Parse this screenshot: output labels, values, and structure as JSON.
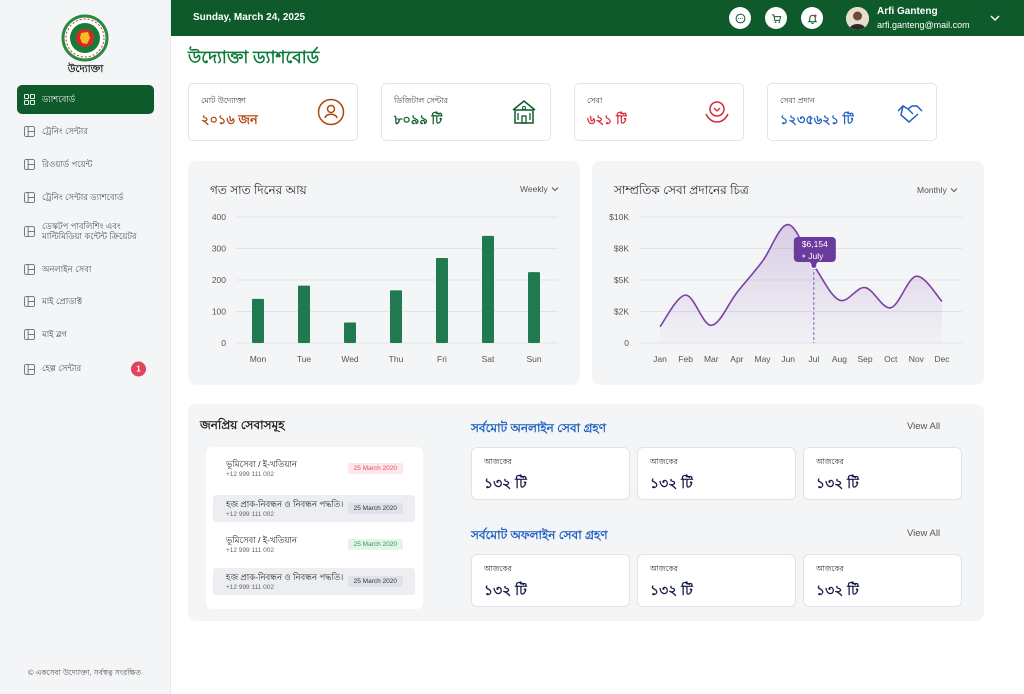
{
  "sidebar": {
    "brand": "উদ্যোক্তা",
    "items": [
      {
        "label": "ড্যাশবোর্ড",
        "active": true
      },
      {
        "label": "ট্রেনিং সেন্টার"
      },
      {
        "label": "রিওয়ার্ড পয়েন্ট"
      },
      {
        "label": "ট্রেনিং সেন্টার ড্যাশবোর্ড"
      },
      {
        "label": "ডেস্কটপ পাবলিশিং এবং মাল্টিমিডিয়া কন্টেন্ট ক্রিয়েটর"
      },
      {
        "label": "অনলাইন সেবা"
      },
      {
        "label": "মাই প্রোডাক্ট"
      },
      {
        "label": "মাই ব্লগ"
      },
      {
        "label": "হেল্প সেন্টার",
        "badge": "1"
      }
    ],
    "footer": "© একসেবা উদ্যোক্তা, সর্বস্বত্ব সংরক্ষিত"
  },
  "topbar": {
    "date": "Sunday, March 24, 2025",
    "icons": [
      "chat-icon",
      "cart-icon",
      "bell-icon"
    ],
    "user_name": "Arfi Ganteng",
    "user_email": "arfi.ganteng@mail.com"
  },
  "page_title": "উদ্যোক্তা ড্যাশবোর্ড",
  "stats": [
    {
      "label": "মোট উদ্যোক্তা",
      "value": "২০১৬ জন",
      "color": "#b0470a",
      "icon": "person-icon"
    },
    {
      "label": "ডিজিটাল সেন্টার",
      "value": "৮০৯৯ টি",
      "color": "#0e5a2b",
      "icon": "building-icon"
    },
    {
      "label": "সেবা",
      "value": "৬২১ টি",
      "color": "#d6283c",
      "icon": "hands-care-icon"
    },
    {
      "label": "সেবা প্রদান",
      "value": "১২৩৫৬২১ টি",
      "color": "#1d5fc2",
      "icon": "handshake-icon"
    }
  ],
  "revenue_chart": {
    "title": "গত সাত দিনের আয়",
    "period": "Weekly",
    "chart_data": {
      "type": "bar",
      "categories": [
        "Mon",
        "Tue",
        "Wed",
        "Thu",
        "Fri",
        "Sat",
        "Sun"
      ],
      "values": [
        140,
        182,
        65,
        167,
        270,
        340,
        225
      ],
      "ylim": [
        0,
        400
      ],
      "yticks": [
        "400",
        "300",
        "200",
        "100",
        "0"
      ],
      "color": "#1f7a4f"
    }
  },
  "service_chart": {
    "title": "সাম্প্রতিক সেবা প্রদানের চিত্র",
    "period": "Monthly",
    "tooltip_value": "$6,154",
    "tooltip_label": "July",
    "chart_data": {
      "type": "line",
      "categories": [
        "Jan",
        "Feb",
        "Mar",
        "Apr",
        "May",
        "Jun",
        "Jul",
        "Aug",
        "Sep",
        "Oct",
        "Nov",
        "Dec"
      ],
      "values": [
        1300,
        3800,
        1400,
        4000,
        6500,
        9400,
        6154,
        3400,
        4400,
        2800,
        5300,
        3300
      ],
      "ylim": [
        0,
        10000
      ],
      "yticks": [
        "$10K",
        "$8K",
        "$5K",
        "$2K",
        "0"
      ],
      "color": "#7b3fa5",
      "highlight_index": 6
    }
  },
  "popular": {
    "title": "জনপ্রিয় সেবাসমূহ",
    "items": [
      {
        "title": "ভূমিসেবা / ই-খতিয়ান",
        "phone": "+12 999 111 002",
        "date": "25 March 2020",
        "date_color": "#e05060",
        "date_bg": "#fde7ea"
      },
      {
        "title": "হজ প্রাক-নিবন্ধন ও নিবন্ধন পদ্ধতি।",
        "phone": "+12 999 111 002",
        "date": "25 March 2020",
        "date_color": "#333",
        "date_bg": "#dfe2ea"
      },
      {
        "title": "ভূমিসেবা / ই-খতিয়ান",
        "phone": "+12 999 111 002",
        "date": "25 March 2020",
        "date_color": "#2a9a55",
        "date_bg": "#e2f5e8"
      },
      {
        "title": "হজ প্রাক-নিবন্ধন ও নিবন্ধন পদ্ধতি।",
        "phone": "+12 999 111 002",
        "date": "25 March 2020",
        "date_color": "#333",
        "date_bg": "#dfe2ea"
      }
    ]
  },
  "online": {
    "title": "সর্বমোট অনলাইন সেবা গ্রহণ",
    "view_all": "View All",
    "cards": [
      {
        "label": "আজকের",
        "value": "১৩২ টি"
      },
      {
        "label": "আজকের",
        "value": "১৩২ টি"
      },
      {
        "label": "আজকের",
        "value": "১৩২ টি"
      }
    ]
  },
  "offline": {
    "title": "সর্বমোট অফলাইন সেবা গ্রহণ",
    "view_all": "View All",
    "cards": [
      {
        "label": "আজকের",
        "value": "১৩২ টি"
      },
      {
        "label": "আজকের",
        "value": "১৩২ টি"
      },
      {
        "label": "আজকের",
        "value": "১৩২ টি"
      }
    ]
  }
}
